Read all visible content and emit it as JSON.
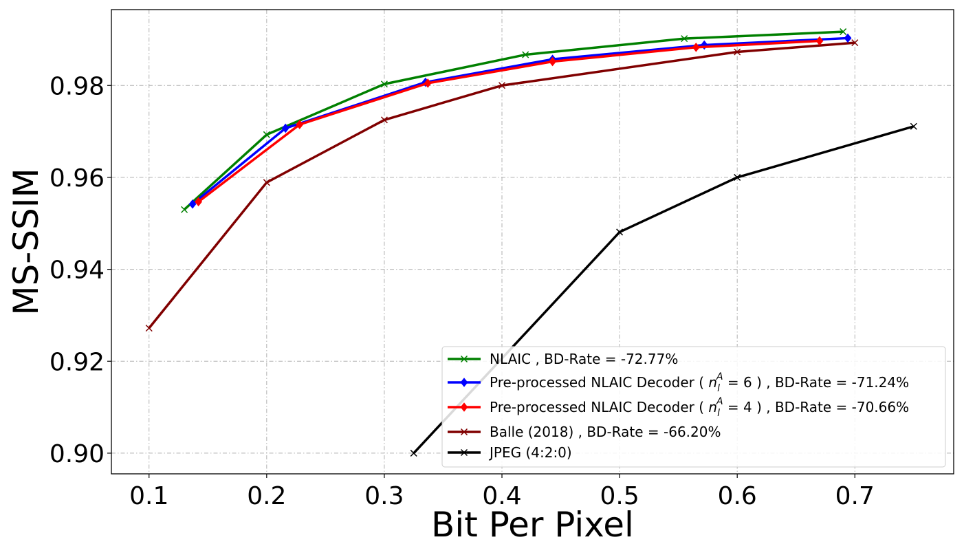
{
  "chart_data": {
    "type": "line",
    "title": "",
    "xlabel": "Bit Per Pixel",
    "ylabel": "MS-SSIM",
    "xlim": [
      0.068,
      0.784
    ],
    "ylim": [
      0.8955,
      0.9965
    ],
    "xticks": [
      0.1,
      0.2,
      0.3,
      0.4,
      0.5,
      0.6,
      0.7
    ],
    "xtick_labels": [
      "0.1",
      "0.2",
      "0.3",
      "0.4",
      "0.5",
      "0.6",
      "0.7"
    ],
    "yticks": [
      0.9,
      0.92,
      0.94,
      0.96,
      0.98
    ],
    "ytick_labels": [
      "0.90",
      "0.92",
      "0.94",
      "0.96",
      "0.98"
    ],
    "grid": true,
    "legend_position": "bottom-right",
    "series": [
      {
        "name": "NLAIC , BD-Rate = -72.77%",
        "color": "#008000",
        "marker": "x",
        "x": [
          0.13,
          0.2,
          0.3,
          0.42,
          0.555,
          0.69
        ],
        "y": [
          0.953,
          0.9693,
          0.9803,
          0.9867,
          0.9902,
          0.9917
        ]
      },
      {
        "name_parts": [
          "Pre-processed NLAIC Decoder ( ",
          "n",
          "l",
          "A",
          " = 6 ) , BD-Rate = -71.24%"
        ],
        "color": "#0000ff",
        "marker": "diamond",
        "x": [
          0.137,
          0.216,
          0.335,
          0.443,
          0.572,
          0.694
        ],
        "y": [
          0.9542,
          0.9707,
          0.9807,
          0.9857,
          0.9888,
          0.9903
        ]
      },
      {
        "name_parts": [
          "Pre-processed NLAIC Decoder ( ",
          "n",
          "l",
          "A",
          " = 4 ) , BD-Rate = -70.66%"
        ],
        "color": "#ff0000",
        "marker": "diamond",
        "x": [
          0.142,
          0.228,
          0.337,
          0.443,
          0.565,
          0.67
        ],
        "y": [
          0.9547,
          0.9715,
          0.9805,
          0.9852,
          0.9883,
          0.9897
        ]
      },
      {
        "name": "Balle (2018) , BD-Rate = -66.20%",
        "color": "#800000",
        "marker": "x",
        "x": [
          0.1,
          0.2,
          0.3,
          0.4,
          0.6,
          0.7
        ],
        "y": [
          0.9272,
          0.9589,
          0.9725,
          0.98,
          0.9873,
          0.9893
        ]
      },
      {
        "name": "JPEG (4:2:0)",
        "color": "#000000",
        "marker": "x",
        "x": [
          0.325,
          0.5,
          0.6,
          0.75
        ],
        "y": [
          0.9,
          0.9481,
          0.96,
          0.9711
        ]
      }
    ]
  }
}
